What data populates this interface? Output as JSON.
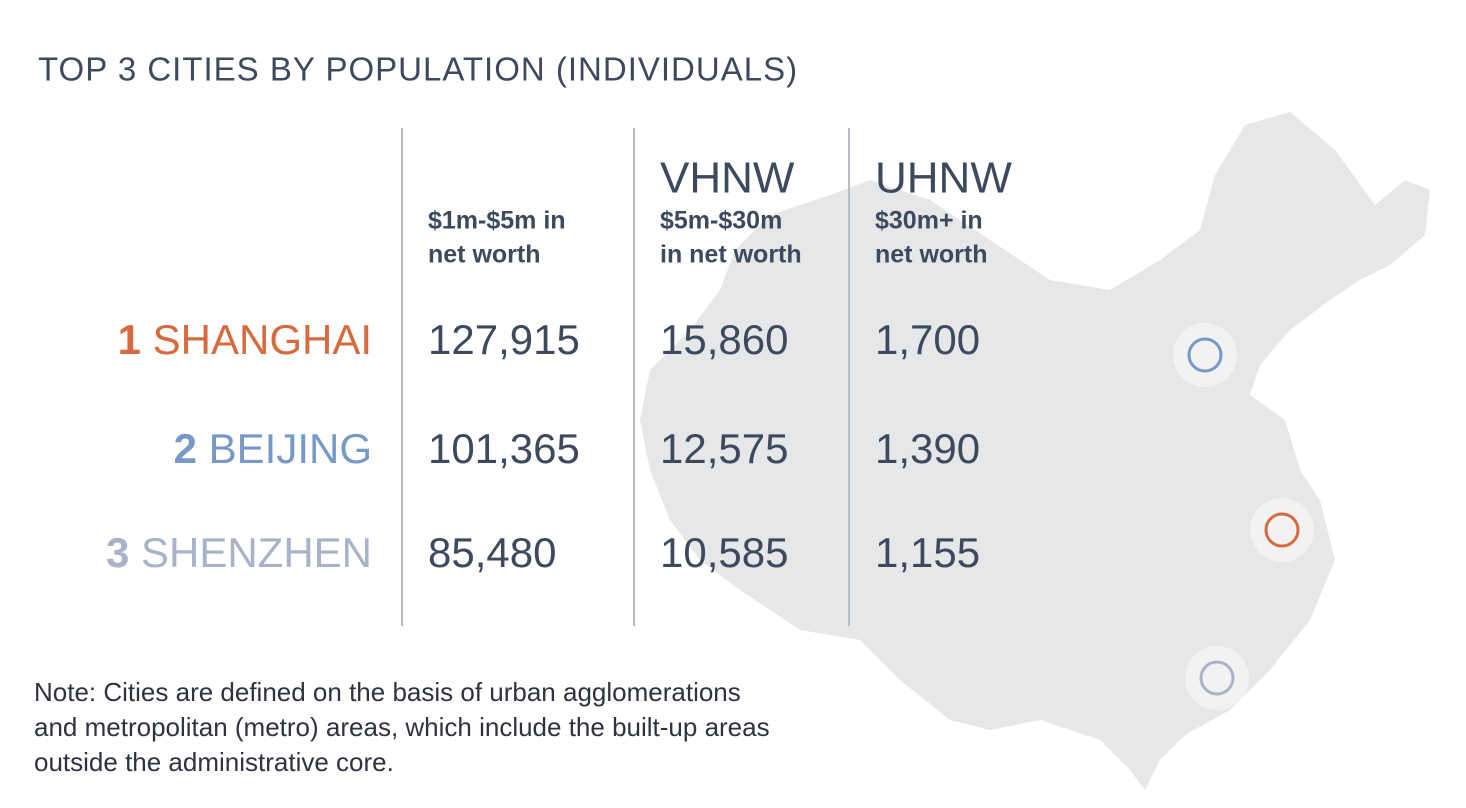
{
  "title": "TOP 3 CITIES BY POPULATION (INDIVIDUALS)",
  "table": {
    "columns": [
      {
        "sub": [
          "$1m-$5m in",
          "net worth"
        ]
      },
      {
        "label": "VHNW",
        "sub": [
          "$5m-$30m",
          "in net worth"
        ]
      },
      {
        "label": "UHNW",
        "sub": [
          "$30m+ in",
          "net worth"
        ]
      }
    ],
    "rows": [
      {
        "rank": 1,
        "city": "SHANGHAI",
        "color": "#d8693c",
        "values": [
          "127,915",
          "15,860",
          "1,700"
        ]
      },
      {
        "rank": 2,
        "city": "BEIJING",
        "color": "#7699c9",
        "values": [
          "101,365",
          "12,575",
          "1,390"
        ]
      },
      {
        "rank": 3,
        "city": "SHENZHEN",
        "color": "#a9b3c8",
        "values": [
          "85,480",
          "10,585",
          "1,155"
        ]
      }
    ]
  },
  "note": [
    "Note: Cities are defined on the basis of urban agglomerations",
    "and metropolitan (metro) areas, which include the built-up areas",
    "outside the administrative core."
  ]
}
